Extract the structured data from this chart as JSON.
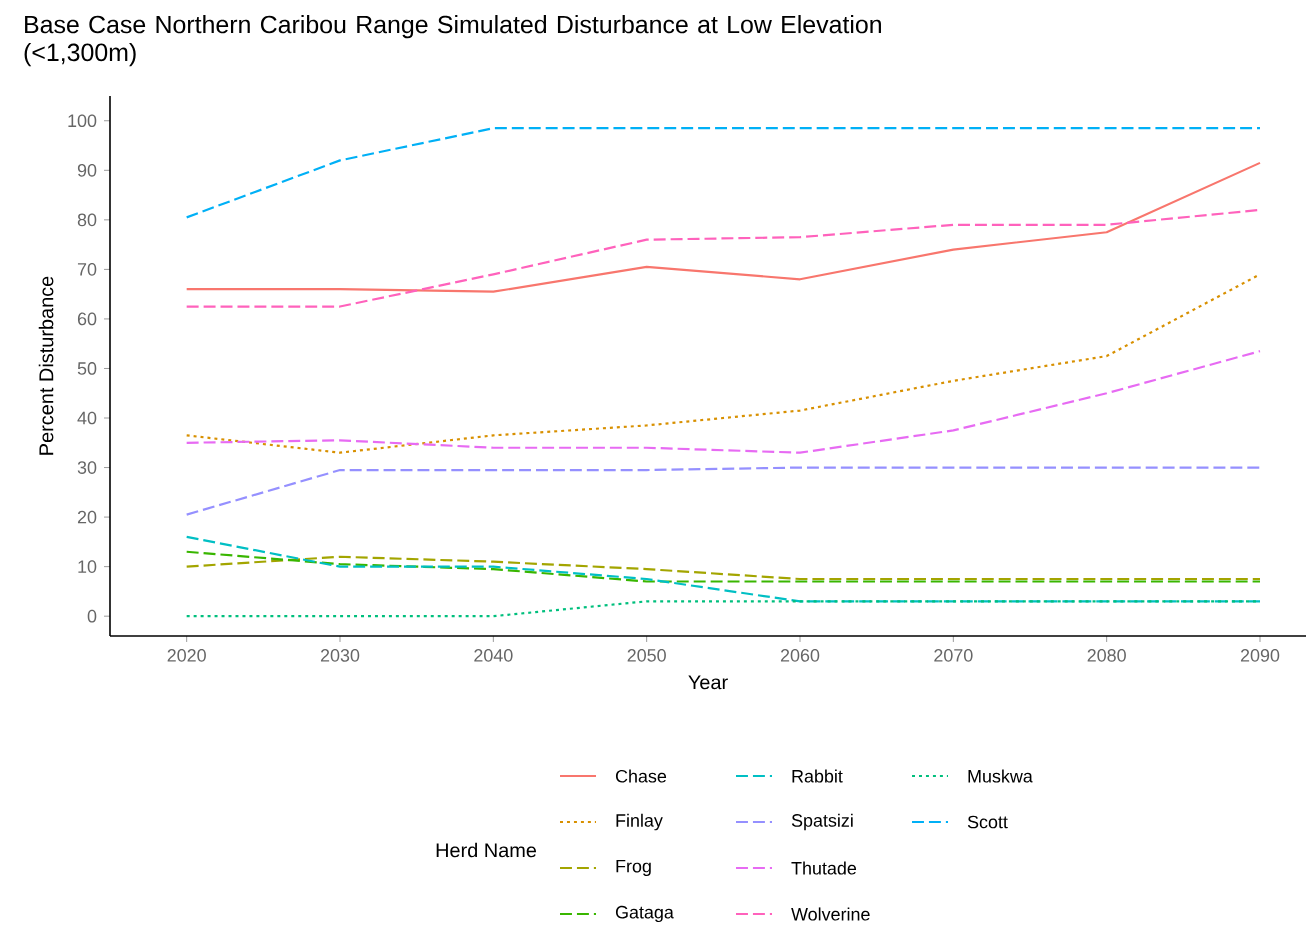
{
  "chart_data": {
    "type": "line",
    "title": "Base Case Northern Caribou Range Simulated Disturbance at Low Elevation (<1,300m)",
    "xlabel": "Year",
    "ylabel": "Percent Disturbance",
    "legend_title": "Herd Name",
    "x": [
      2020,
      2030,
      2040,
      2050,
      2060,
      2070,
      2080,
      2090
    ],
    "xlim": [
      2015,
      2093
    ],
    "xticks": [
      2020,
      2030,
      2040,
      2050,
      2060,
      2070,
      2080,
      2090
    ],
    "ylim": [
      -4,
      105
    ],
    "yticks": [
      0,
      10,
      20,
      30,
      40,
      50,
      60,
      70,
      80,
      90,
      100
    ],
    "grid": false,
    "legend": "bottom",
    "marker": "none",
    "series": [
      {
        "name": "Chase",
        "color": "#F8766D",
        "line_style": "solid",
        "values": [
          66,
          66,
          65.5,
          70.5,
          68,
          74,
          77.5,
          91.5
        ]
      },
      {
        "name": "Finlay",
        "color": "#D89000",
        "line_style": "dotted",
        "values": [
          36.5,
          33,
          36.5,
          38.5,
          41.5,
          47.5,
          52.5,
          69
        ]
      },
      {
        "name": "Frog",
        "color": "#A3A500",
        "line_style": "dashed",
        "values": [
          10,
          12,
          11,
          9.5,
          7.5,
          7.5,
          7.5,
          7.5
        ]
      },
      {
        "name": "Gataga",
        "color": "#39B600",
        "line_style": "dashed",
        "values": [
          13,
          10.5,
          9.5,
          7,
          7,
          7,
          7,
          7
        ]
      },
      {
        "name": "Rabbit",
        "color": "#00BFC4",
        "line_style": "dashed",
        "values": [
          16,
          10,
          10,
          7.5,
          3,
          3,
          3,
          3
        ]
      },
      {
        "name": "Spatsizi",
        "color": "#9590FF",
        "line_style": "dashed",
        "values": [
          20.5,
          29.5,
          29.5,
          29.5,
          30,
          30,
          30,
          30
        ]
      },
      {
        "name": "Thutade",
        "color": "#E76BF3",
        "line_style": "dashed",
        "values": [
          35,
          35.5,
          34,
          34,
          33,
          37.5,
          45,
          53.5
        ]
      },
      {
        "name": "Wolverine",
        "color": "#FF62BC",
        "line_style": "dashed",
        "values": [
          62.5,
          62.5,
          69,
          76,
          76.5,
          79,
          79,
          82
        ]
      },
      {
        "name": "Muskwa",
        "color": "#00BF7D",
        "line_style": "dotted",
        "values": [
          0,
          0,
          0,
          3,
          3,
          3,
          3,
          3
        ]
      },
      {
        "name": "Scott",
        "color": "#00B0F6",
        "line_style": "dashed",
        "values": [
          80.5,
          92,
          98.5,
          98.5,
          98.5,
          98.5,
          98.5,
          98.5
        ]
      }
    ]
  }
}
